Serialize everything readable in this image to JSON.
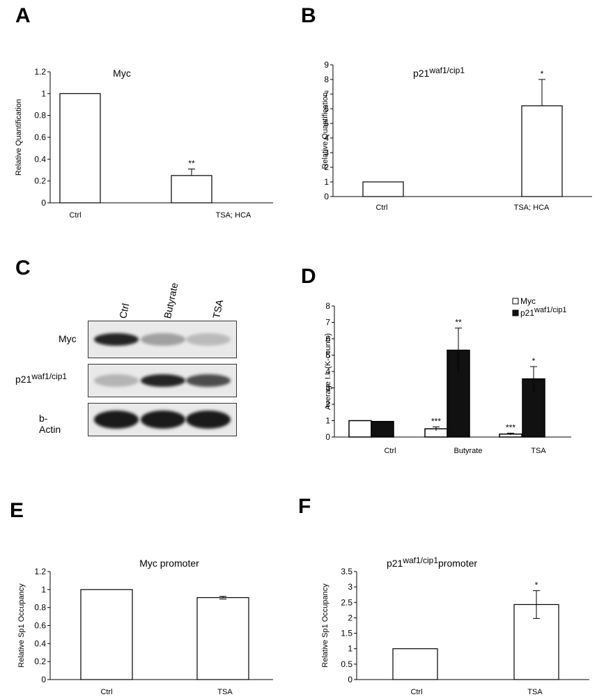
{
  "panels": {
    "A": "A",
    "B": "B",
    "C": "C",
    "D": "D",
    "E": "E",
    "F": "F"
  },
  "blot": {
    "lanes": [
      "Ctrl",
      "Butyrate",
      "TSA"
    ],
    "rows": [
      {
        "label": "Myc",
        "intensities": [
          0.95,
          0.35,
          0.22
        ]
      },
      {
        "label": "p21waf1/cip1",
        "intensities": [
          0.25,
          0.95,
          0.75
        ]
      },
      {
        "label": "b-Actin",
        "intensities": [
          1.0,
          1.0,
          1.0
        ]
      }
    ],
    "colors": {
      "background": "#e9e9e9",
      "band": "#1a1a1a"
    }
  },
  "chart_data": [
    {
      "id": "A",
      "type": "bar",
      "title": "Myc",
      "ylabel": "Relative Quantification",
      "categories": [
        "Ctrl",
        "TSA; HCA"
      ],
      "values": [
        1.0,
        0.25
      ],
      "errors": [
        0.0,
        0.06
      ],
      "significance": [
        "",
        "**"
      ],
      "ylim": [
        0,
        1.2
      ],
      "yticks": [
        "0",
        "0.2",
        "0.4",
        "0.6",
        "0.8",
        "1",
        "1.2"
      ],
      "ytick_values": [
        0,
        0.2,
        0.4,
        0.6,
        0.8,
        1.0,
        1.2
      ],
      "bar_color": "#ffffff"
    },
    {
      "id": "B",
      "type": "bar",
      "title_main": "p21",
      "title_sup": "waf1/cip1",
      "ylabel": "Relative Quantification",
      "categories": [
        "Ctrl",
        "TSA; HCA"
      ],
      "values": [
        1.0,
        6.2
      ],
      "errors": [
        0.0,
        1.8
      ],
      "significance": [
        "",
        "*"
      ],
      "ylim": [
        0,
        9
      ],
      "yticks": [
        "0",
        "1",
        "2",
        "3",
        "4",
        "5",
        "6",
        "7",
        "8",
        "9"
      ],
      "ytick_values": [
        0,
        1,
        2,
        3,
        4,
        5,
        6,
        7,
        8,
        9
      ],
      "bar_color": "#ffffff"
    },
    {
      "id": "D",
      "type": "bar",
      "ylabel": "Average I.I. (K-counts)",
      "categories": [
        "Ctrl",
        "Butyrate",
        "TSA"
      ],
      "series": [
        {
          "name": "Myc",
          "values": [
            1.0,
            0.5,
            0.18
          ],
          "errors": [
            0.0,
            0.12,
            0.06
          ],
          "significance": [
            "",
            "***",
            "***"
          ],
          "color": "#ffffff"
        },
        {
          "name_main": "p21",
          "name_sup": "waf1/cip1",
          "values": [
            0.95,
            5.3,
            3.55
          ],
          "errors": [
            0.0,
            1.35,
            0.75
          ],
          "significance": [
            "",
            "**",
            "*"
          ],
          "color": "#111111"
        }
      ],
      "legend_position": "top-right",
      "ylim": [
        0,
        8
      ],
      "yticks": [
        "0",
        "1",
        "2",
        "3",
        "4",
        "5",
        "6",
        "7",
        "8"
      ],
      "ytick_values": [
        0,
        1,
        2,
        3,
        4,
        5,
        6,
        7,
        8
      ]
    },
    {
      "id": "E",
      "type": "bar",
      "title": "Myc promoter",
      "ylabel": "Relative Sp1 Occupancy",
      "categories": [
        "Ctrl",
        "TSA"
      ],
      "values": [
        1.0,
        0.91
      ],
      "errors": [
        0.0,
        0.015
      ],
      "significance": [
        "",
        ""
      ],
      "ylim": [
        0,
        1.2
      ],
      "yticks": [
        "0",
        "0.2",
        "0.4",
        "0.6",
        "0.8",
        "1",
        "1.2"
      ],
      "ytick_values": [
        0,
        0.2,
        0.4,
        0.6,
        0.8,
        1.0,
        1.2
      ],
      "bar_color": "#ffffff"
    },
    {
      "id": "F",
      "type": "bar",
      "title_main": "p21",
      "title_sup": "waf1/cip1",
      "title_tail": "promoter",
      "ylabel": "Relative Sp1 Occupancy",
      "categories": [
        "Ctrl",
        "TSA"
      ],
      "values": [
        1.0,
        2.43
      ],
      "errors": [
        0.0,
        0.45
      ],
      "significance": [
        "",
        "*"
      ],
      "ylim": [
        0,
        3.5
      ],
      "yticks": [
        "0",
        "0.5",
        "1",
        "1.5",
        "2",
        "2.5",
        "3",
        "3.5"
      ],
      "ytick_values": [
        0,
        0.5,
        1.0,
        1.5,
        2.0,
        2.5,
        3.0,
        3.5
      ],
      "bar_color": "#ffffff"
    }
  ]
}
